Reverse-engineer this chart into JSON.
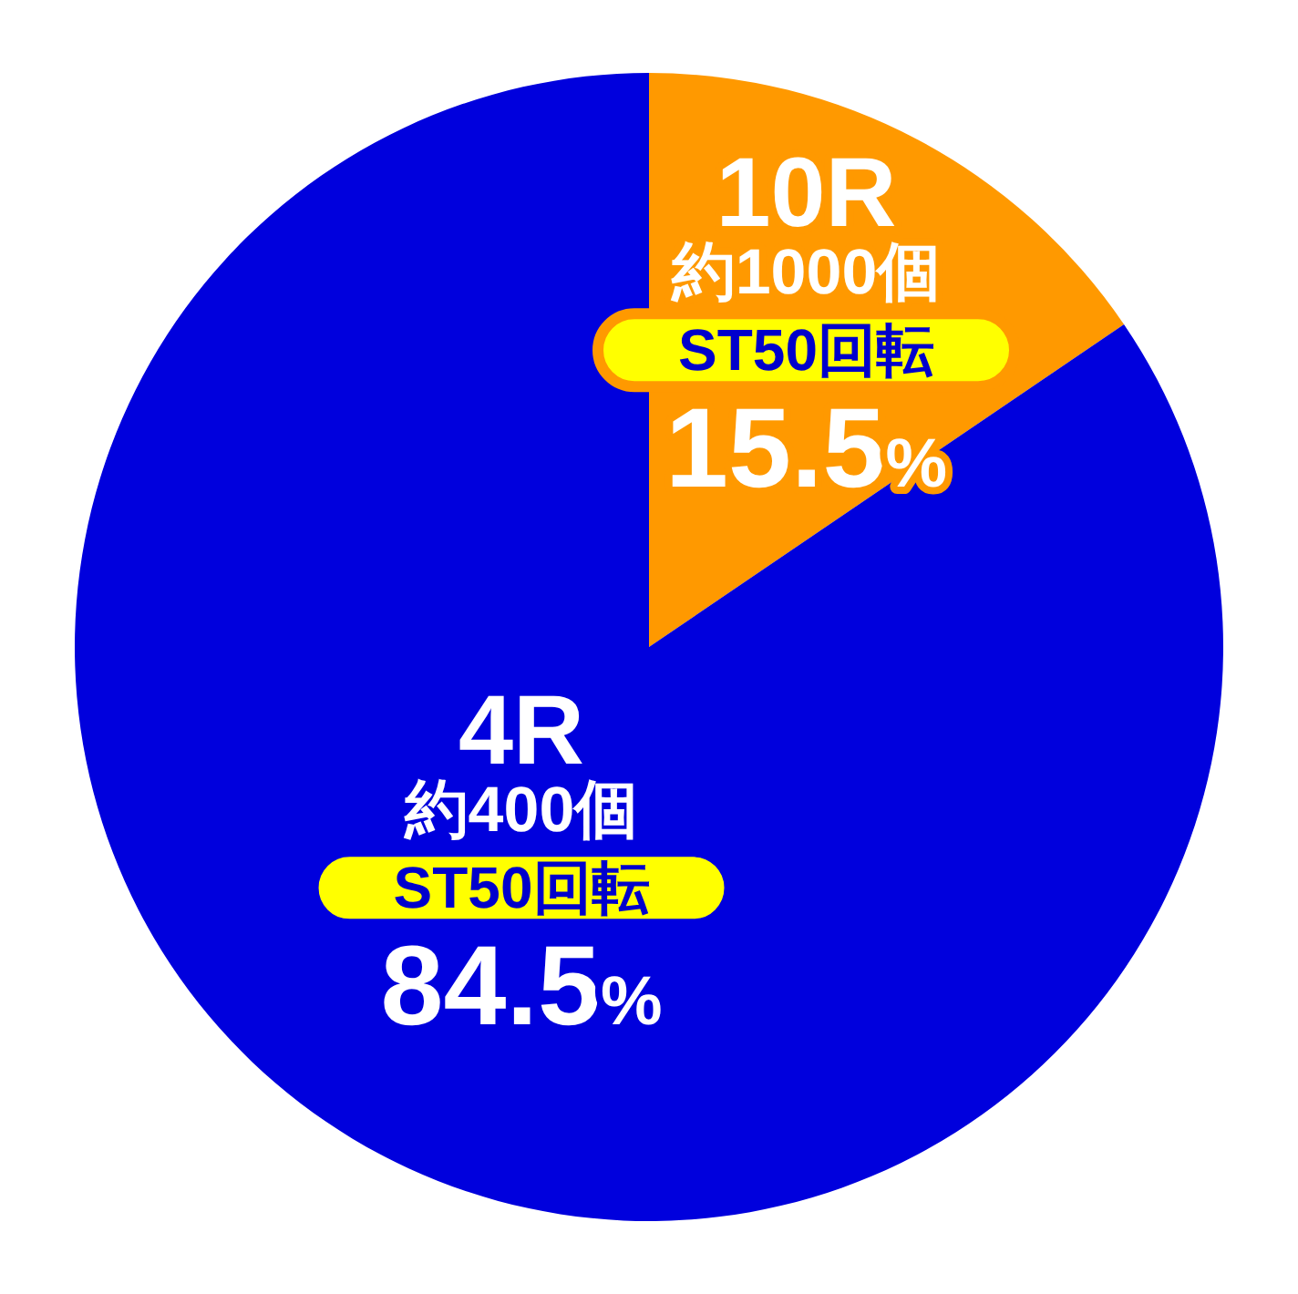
{
  "chart_data": {
    "type": "pie",
    "categories": [
      "10R",
      "4R"
    ],
    "values": [
      15.5,
      84.5
    ],
    "colors": [
      "#ff9900",
      "#0000dd"
    ],
    "value_labels": [
      "15.5%",
      "84.5%"
    ],
    "annotations": [
      "約1000個",
      "ST50回転",
      "約400個",
      "ST50回転"
    ]
  }
}
